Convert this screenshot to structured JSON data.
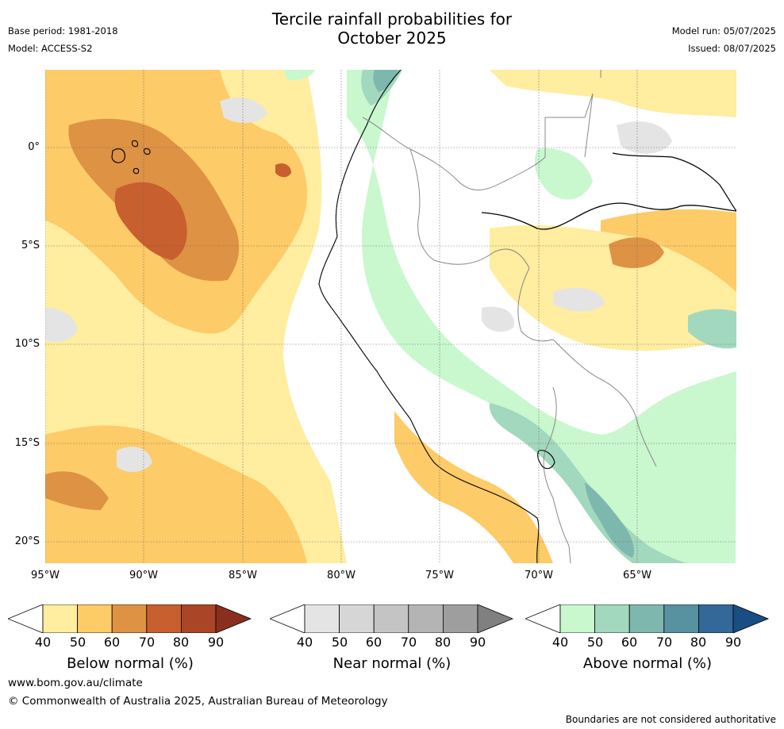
{
  "header": {
    "title_line1": "Tercile rainfall probabilities for",
    "title_line2": "October 2025",
    "base_period": "Base period: 1981-2018",
    "model": "Model: ACCESS-S2",
    "model_run": "Model run: 05/07/2025",
    "issued": "Issued: 08/07/2025"
  },
  "map": {
    "lat_labels": [
      "0°",
      "5°S",
      "10°S",
      "15°S",
      "20°S"
    ],
    "lon_labels": [
      "95°W",
      "90°W",
      "85°W",
      "80°W",
      "75°W",
      "70°W",
      "65°W"
    ],
    "colors": {
      "below": [
        "#ffeda0",
        "#fdcb67",
        "#de9244",
        "#c85f2e",
        "#ab4527",
        "#8a2e1e"
      ],
      "near": [
        "#e4e4e4",
        "#d6d6d6",
        "#c4c4c4",
        "#b4b4b4",
        "#9e9e9e",
        "#808080"
      ],
      "above": [
        "#c9f7ce",
        "#a2d8bd",
        "#7eb7ad",
        "#5891a0",
        "#336898",
        "#1b4d85"
      ]
    }
  },
  "colorbars": [
    {
      "label": "Below normal (%)",
      "ticks": [
        "40",
        "50",
        "60",
        "70",
        "80",
        "90"
      ]
    },
    {
      "label": "Near normal (%)",
      "ticks": [
        "40",
        "50",
        "60",
        "70",
        "80",
        "90"
      ]
    },
    {
      "label": "Above normal (%)",
      "ticks": [
        "40",
        "50",
        "60",
        "70",
        "80",
        "90"
      ]
    }
  ],
  "footer": {
    "website": "www.bom.gov.au/climate",
    "copyright": "© Commonwealth of Australia 2025, Australian Bureau of Meteorology",
    "disclaimer": "Boundaries are not considered authoritative"
  }
}
